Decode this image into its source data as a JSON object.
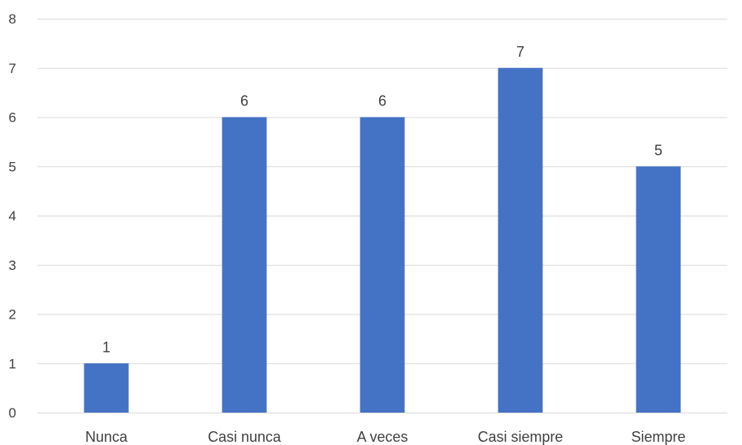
{
  "chart_data": {
    "type": "bar",
    "categories": [
      "Nunca",
      "Casi nunca",
      "A veces",
      "Casi siempre",
      "Siempre"
    ],
    "values": [
      1,
      6,
      6,
      7,
      5
    ],
    "title": "",
    "xlabel": "",
    "ylabel": "",
    "ylim": [
      0,
      8
    ],
    "yticks": [
      "0",
      "1",
      "2",
      "3",
      "4",
      "5",
      "6",
      "7",
      "8"
    ],
    "grid": true,
    "legend": "none",
    "bar_color": "#4472c4"
  }
}
